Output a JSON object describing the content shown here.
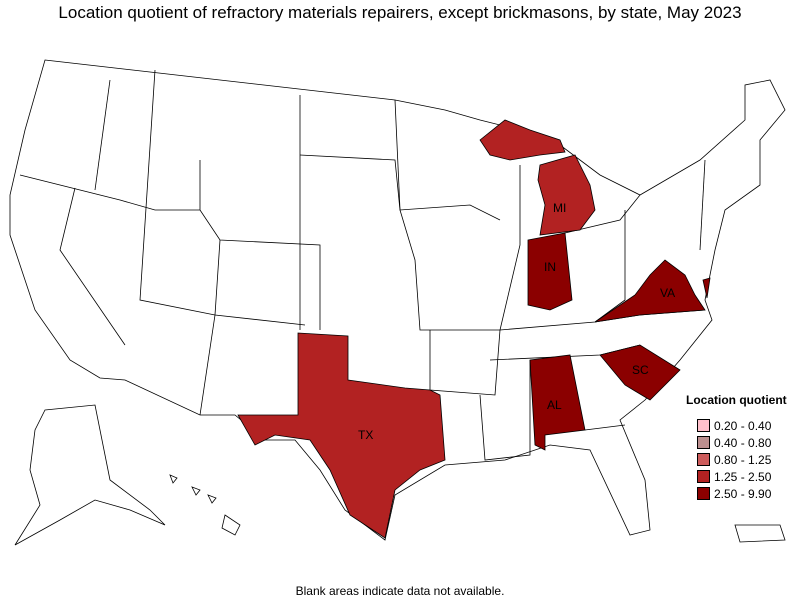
{
  "title": "Location quotient of refractory materials repairers, except brickmasons, by state, May 2023",
  "footnote": "Blank areas indicate data not available.",
  "legend": {
    "title": "Location quotient",
    "items": [
      {
        "label": "0.20 - 0.40",
        "color": "#FFC0CB"
      },
      {
        "label": "0.40 - 0.80",
        "color": "#BC8F8F"
      },
      {
        "label": "0.80 - 1.25",
        "color": "#CD5C5C"
      },
      {
        "label": "1.25 - 2.50",
        "color": "#B22222"
      },
      {
        "label": "2.50 - 9.90",
        "color": "#8B0000"
      }
    ]
  },
  "states": [
    {
      "abbr": "TX",
      "range": "1.25 - 2.50",
      "color": "#B22222"
    },
    {
      "abbr": "MI",
      "range": "1.25 - 2.50",
      "color": "#B22222"
    },
    {
      "abbr": "IN",
      "range": "2.50 - 9.90",
      "color": "#8B0000"
    },
    {
      "abbr": "VA",
      "range": "2.50 - 9.90",
      "color": "#8B0000"
    },
    {
      "abbr": "AL",
      "range": "2.50 - 9.90",
      "color": "#8B0000"
    },
    {
      "abbr": "SC",
      "range": "2.50 - 9.90",
      "color": "#8B0000"
    }
  ]
}
